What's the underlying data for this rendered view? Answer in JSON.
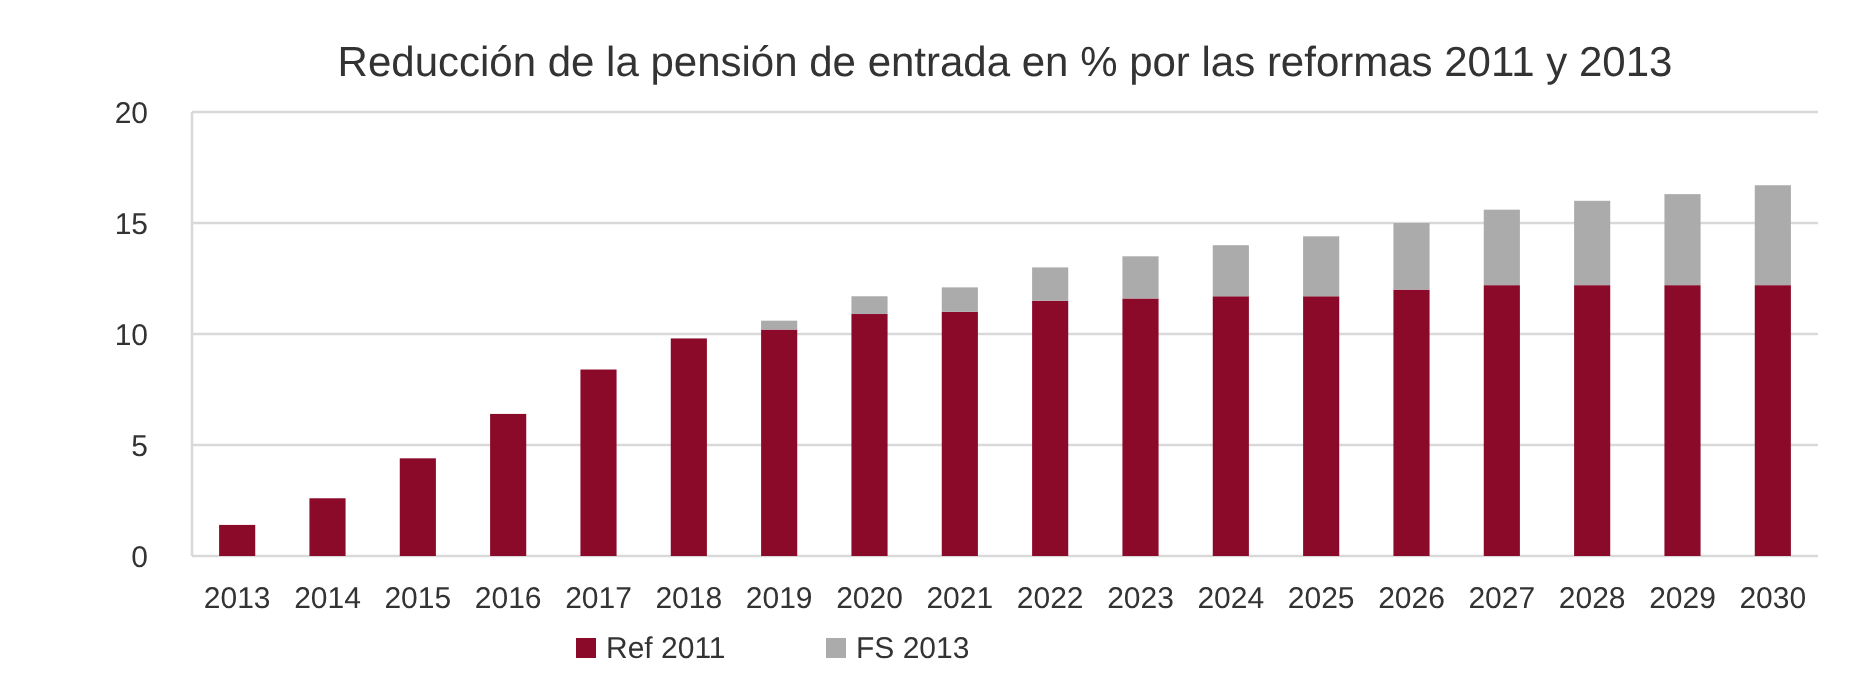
{
  "chart_data": {
    "type": "bar",
    "title": "Reducción de la pensión de entrada en % por las reformas 2011 y 2013",
    "categories": [
      "2013",
      "2014",
      "2015",
      "2016",
      "2017",
      "2018",
      "2019",
      "2020",
      "2021",
      "2022",
      "2023",
      "2024",
      "2025",
      "2026",
      "2027",
      "2028",
      "2029",
      "2030"
    ],
    "series": [
      {
        "name": "Ref 2011",
        "color": "#8b0a2a",
        "values": [
          1.4,
          2.6,
          4.4,
          6.4,
          8.4,
          9.8,
          10.2,
          10.9,
          11.0,
          11.5,
          11.6,
          11.7,
          11.7,
          12.0,
          12.2,
          12.2,
          12.2,
          12.2
        ]
      },
      {
        "name": "FS 2013",
        "color": "#ababab",
        "values": [
          0,
          0,
          0,
          0,
          0,
          0,
          0.4,
          0.8,
          1.1,
          1.5,
          1.9,
          2.3,
          2.7,
          3.0,
          3.4,
          3.8,
          4.1,
          4.5
        ]
      }
    ],
    "stacked": true,
    "ylim": [
      0,
      20
    ],
    "yticks": [
      0,
      5,
      10,
      15,
      20
    ],
    "grid": "y",
    "legend": "bottom"
  }
}
